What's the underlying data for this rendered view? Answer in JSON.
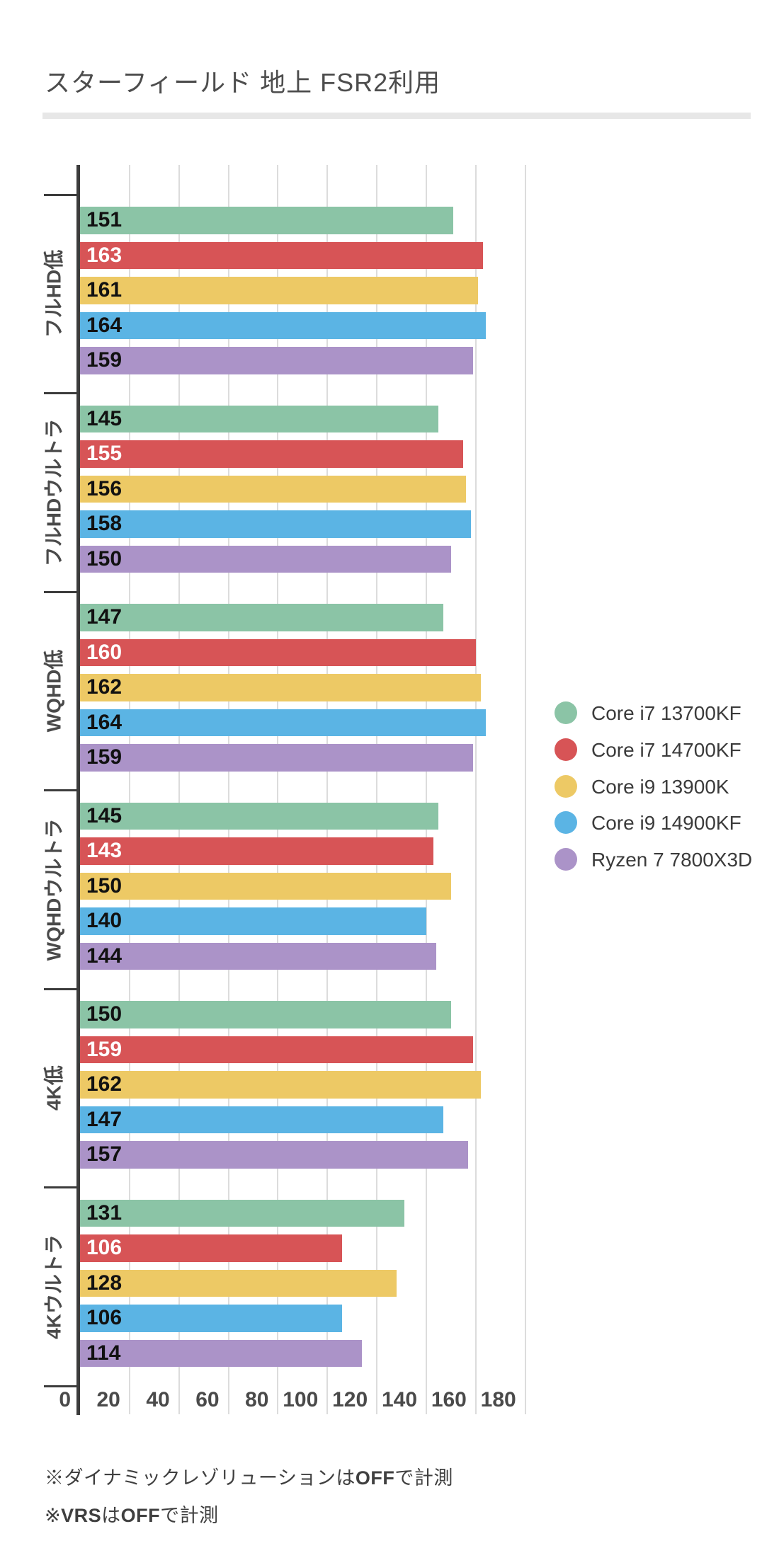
{
  "title": "スターフィールド 地上 FSR2利用",
  "chart_data": {
    "type": "bar",
    "orientation": "horizontal",
    "title": "スターフィールド 地上 FSR2利用",
    "categories": [
      "フルHD低",
      "フルHDウルトラ",
      "WQHD低",
      "WQHDウルトラ",
      "4K低",
      "4Kウルトラ"
    ],
    "series": [
      {
        "name": "Core i7 13700KF",
        "color": "#8BC4A6",
        "value_label_color": "#111111",
        "values": [
          151,
          145,
          147,
          145,
          150,
          131
        ]
      },
      {
        "name": "Core i7 14700KF",
        "color": "#D75456",
        "value_label_color": "#FFFFFF",
        "values": [
          163,
          155,
          160,
          143,
          159,
          106
        ]
      },
      {
        "name": "Core i9 13900K",
        "color": "#EDC965",
        "value_label_color": "#111111",
        "values": [
          161,
          156,
          162,
          150,
          162,
          128
        ]
      },
      {
        "name": "Core i9 14900KF",
        "color": "#5BB4E4",
        "value_label_color": "#111111",
        "values": [
          164,
          158,
          164,
          140,
          147,
          106
        ]
      },
      {
        "name": "Ryzen 7 7800X3D",
        "color": "#AB93C8",
        "value_label_color": "#111111",
        "values": [
          159,
          150,
          159,
          144,
          157,
          114
        ]
      }
    ],
    "x_ticks": [
      0,
      20,
      40,
      60,
      80,
      100,
      120,
      140,
      160,
      180
    ],
    "xlim": [
      0,
      180
    ],
    "grid": true,
    "value_labels": "inside-start",
    "legend_position": "right-center",
    "axis_color": "#3C3C3C",
    "gridline_color": "#DCDCDC",
    "tick_label_color": "#4A4A4A"
  },
  "footnotes": [
    {
      "segments": [
        {
          "text": "※ダイナミックレゾリューションは",
          "bold": false
        },
        {
          "text": "OFF",
          "bold": true
        },
        {
          "text": "で計測",
          "bold": false
        }
      ]
    },
    {
      "segments": [
        {
          "text": "※",
          "bold": false
        },
        {
          "text": "VRS",
          "bold": true
        },
        {
          "text": "は",
          "bold": false
        },
        {
          "text": "OFF",
          "bold": true
        },
        {
          "text": "で計測",
          "bold": false
        }
      ]
    }
  ]
}
